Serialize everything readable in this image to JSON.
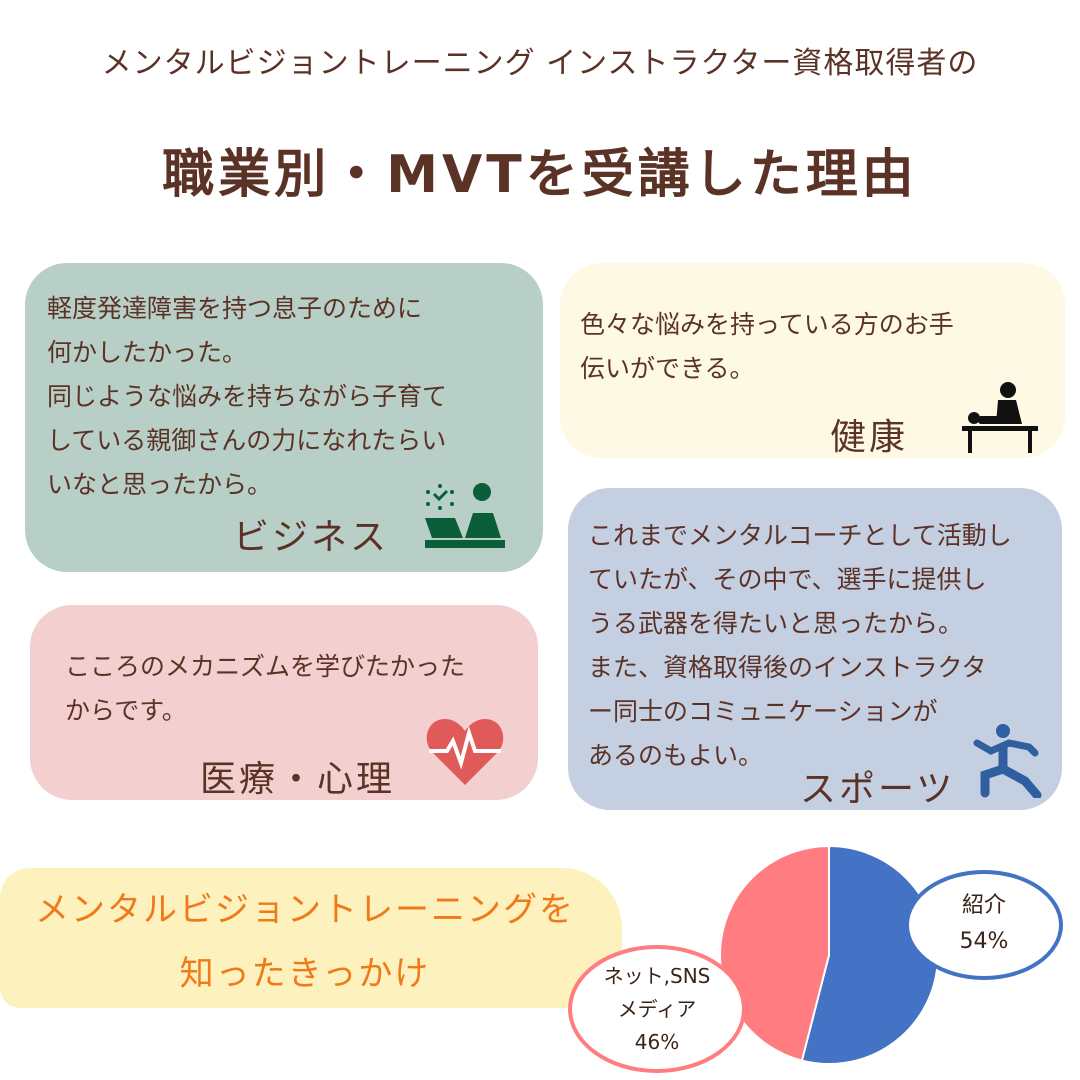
{
  "title": {
    "line1": "メンタルビジョントレーニング インストラクター資格取得者の",
    "line2": "職業別・MVTを受講した理由"
  },
  "cards": {
    "business": {
      "category": "ビジネス",
      "icon": "businessman-desk-icon",
      "color": "#b7cfc6",
      "lines": [
        "軽度発達障害を持つ息子のために",
        "何かしたかった。",
        "同じような悩みを持ちながら子育て",
        "している親御さんの力になれたらい",
        "いなと思ったから。"
      ]
    },
    "health": {
      "category": "健康",
      "icon": "massage-therapist-icon",
      "color": "#fdf9e4",
      "lines": [
        "色々な悩みを持っている方のお手",
        "伝いができる。"
      ]
    },
    "medical": {
      "category": "医療・心理",
      "icon": "heart-pulse-icon",
      "color": "#f4cfcf",
      "lines": [
        "こころのメカニズムを学びたかった",
        "からです。"
      ]
    },
    "sports": {
      "category": "スポーツ",
      "icon": "running-person-icon",
      "color": "#c5cfe2",
      "lines": [
        "これまでメンタルコーチとして活動し",
        "ていたが、その中で、選手に提供し",
        "うる武器を得たいと思ったから。",
        "また、資格取得後のインストラクタ",
        "ー同士のコミュニケーションが",
        "あるのもよい。"
      ]
    }
  },
  "source_heading": {
    "line1": "メンタルビジョントレーニングを",
    "line2": "知ったきっかけ"
  },
  "chart_data": {
    "type": "pie",
    "slices": [
      {
        "label": "紹介",
        "value": 54,
        "value_label": "54%",
        "color": "#4472c4"
      },
      {
        "label": "ネット,SNS メディア",
        "label_lines": [
          "ネット,SNS",
          "メディア"
        ],
        "value": 46,
        "value_label": "46%",
        "color": "#ff7c80"
      }
    ]
  }
}
